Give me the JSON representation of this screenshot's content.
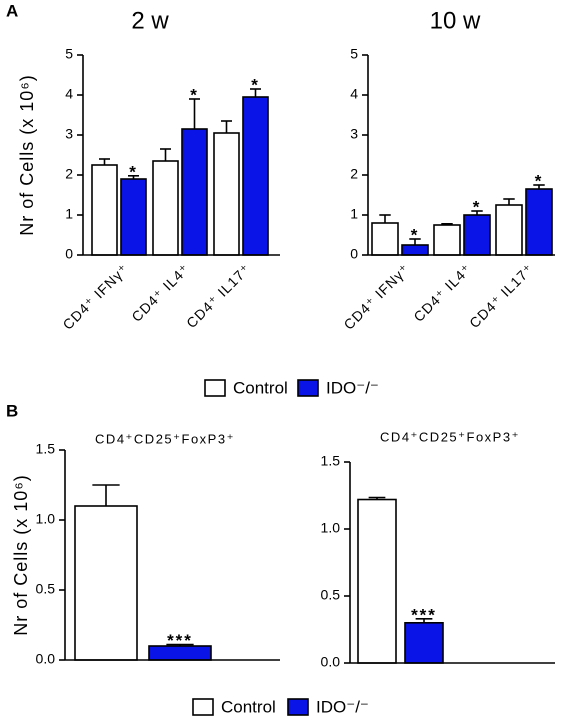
{
  "chart_data": [
    {
      "type": "bar",
      "panel": "A",
      "title": "2 w",
      "ylabel": "Nr of Cells (x 10⁶)",
      "categories": [
        "CD4⁺ IFNγ⁺",
        "CD4⁺ IL4⁺",
        "CD4⁺ IL17⁺"
      ],
      "series": [
        {
          "name": "Control",
          "color": "#ffffff",
          "values": [
            2.25,
            2.35,
            3.05
          ],
          "errors": [
            0.15,
            0.3,
            0.3
          ]
        },
        {
          "name": "IDO⁻/⁻",
          "color": "#0a14e6",
          "values": [
            1.9,
            3.15,
            3.95
          ],
          "errors": [
            0.08,
            0.75,
            0.2
          ],
          "significance": [
            "*",
            "*",
            "*"
          ]
        }
      ],
      "ylim": [
        0,
        5
      ],
      "yticks": [
        0,
        1,
        2,
        3,
        4,
        5
      ]
    },
    {
      "type": "bar",
      "title": "10 w",
      "categories": [
        "CD4⁺ IFNγ⁺",
        "CD4⁺ IL4⁺",
        "CD4⁺ IL17⁺"
      ],
      "series": [
        {
          "name": "Control",
          "color": "#ffffff",
          "values": [
            0.8,
            0.75,
            1.25
          ],
          "errors": [
            0.2,
            0.03,
            0.15
          ]
        },
        {
          "name": "IDO⁻/⁻",
          "color": "#0a14e6",
          "values": [
            0.25,
            1.0,
            1.65
          ],
          "errors": [
            0.15,
            0.1,
            0.1
          ],
          "significance": [
            "*",
            "*",
            "*"
          ]
        }
      ],
      "ylim": [
        0,
        5
      ],
      "yticks": [
        0,
        1,
        2,
        3,
        4,
        5
      ]
    },
    {
      "type": "bar",
      "panel": "B",
      "title": "CD4⁺CD25⁺FoxP3⁺",
      "ylabel": "Nr of Cells (x 10⁶)",
      "series": [
        {
          "name": "Control",
          "color": "#ffffff",
          "values": [
            1.1
          ],
          "errors": [
            0.15
          ]
        },
        {
          "name": "IDO⁻/⁻",
          "color": "#0a14e6",
          "values": [
            0.1
          ],
          "errors": [
            0.01
          ],
          "significance": [
            "***"
          ]
        }
      ],
      "ylim": [
        0,
        1.5
      ],
      "yticks": [
        {
          "value": 0,
          "label": "0.0"
        },
        0.5,
        {
          "value": 1,
          "label": "1.0"
        },
        1.5
      ]
    },
    {
      "type": "bar",
      "title": "CD4⁺CD25⁺FoxP3⁺",
      "series": [
        {
          "name": "Control",
          "color": "#ffffff",
          "values": [
            1.22
          ],
          "errors": [
            0.015
          ]
        },
        {
          "name": "IDO⁻/⁻",
          "color": "#0a14e6",
          "values": [
            0.3
          ],
          "errors": [
            0.03
          ],
          "significance": [
            "***"
          ]
        }
      ],
      "ylim": [
        0,
        1.5
      ],
      "yticks": [
        {
          "value": 0,
          "label": "0.0"
        },
        0.5,
        {
          "value": 1,
          "label": "1.0"
        },
        1.5
      ]
    }
  ]
}
